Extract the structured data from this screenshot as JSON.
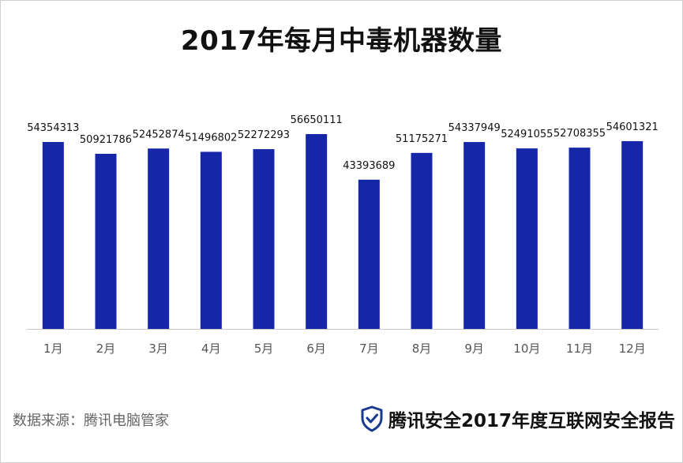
{
  "title": "2017年每月中毒机器数量",
  "source": "数据来源：腾讯电脑管家",
  "brand": {
    "text": "腾讯安全2017年度互联网安全报告",
    "icon": "shield-check-icon",
    "color": "#1a3a8f"
  },
  "colors": {
    "bar": "#1526a8",
    "axis": "#c8c8c8",
    "tick_text": "#555555",
    "label_text": "#111111"
  },
  "chart_data": {
    "type": "bar",
    "title": "2017年每月中毒机器数量",
    "xlabel": "",
    "ylabel": "",
    "categories": [
      "1月",
      "2月",
      "3月",
      "4月",
      "5月",
      "6月",
      "7月",
      "8月",
      "9月",
      "10月",
      "11月",
      "12月"
    ],
    "values": [
      54354313,
      50921786,
      52452874,
      51496802,
      52272293,
      56650111,
      43393689,
      51175271,
      54337949,
      52491055,
      52708355,
      54601321
    ],
    "ylim": [
      0,
      56650111
    ],
    "grid": false,
    "legend": "none"
  }
}
